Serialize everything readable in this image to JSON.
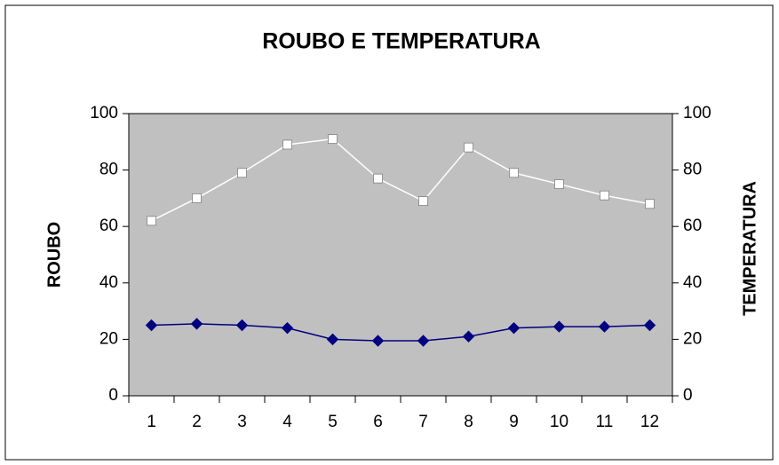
{
  "chart_data": {
    "type": "line",
    "title": "ROUBO E TEMPERATURA",
    "y_label": "ROUBO",
    "y2_label": "TEMPERATURA",
    "categories": [
      "1",
      "2",
      "3",
      "4",
      "5",
      "6",
      "7",
      "8",
      "9",
      "10",
      "11",
      "12"
    ],
    "series": [
      {
        "color": "#ffffff",
        "marker": "square",
        "values": [
          62,
          70,
          79,
          89,
          91,
          77,
          69,
          88,
          79,
          75,
          71,
          68
        ]
      },
      {
        "color": "#000080",
        "marker": "diamond",
        "axis": "y2",
        "values": [
          25,
          25.5,
          25,
          24,
          20,
          19.5,
          19.5,
          21,
          24,
          24.5,
          24.5,
          25
        ]
      }
    ],
    "ylim": [
      0,
      100
    ],
    "yticks": [
      0,
      20,
      40,
      60,
      80,
      100
    ],
    "y2lim": [
      0,
      100
    ],
    "y2ticks": [
      0,
      20,
      40,
      60,
      80,
      100
    ],
    "plot_background": "#c0c0c0",
    "grid": false
  }
}
